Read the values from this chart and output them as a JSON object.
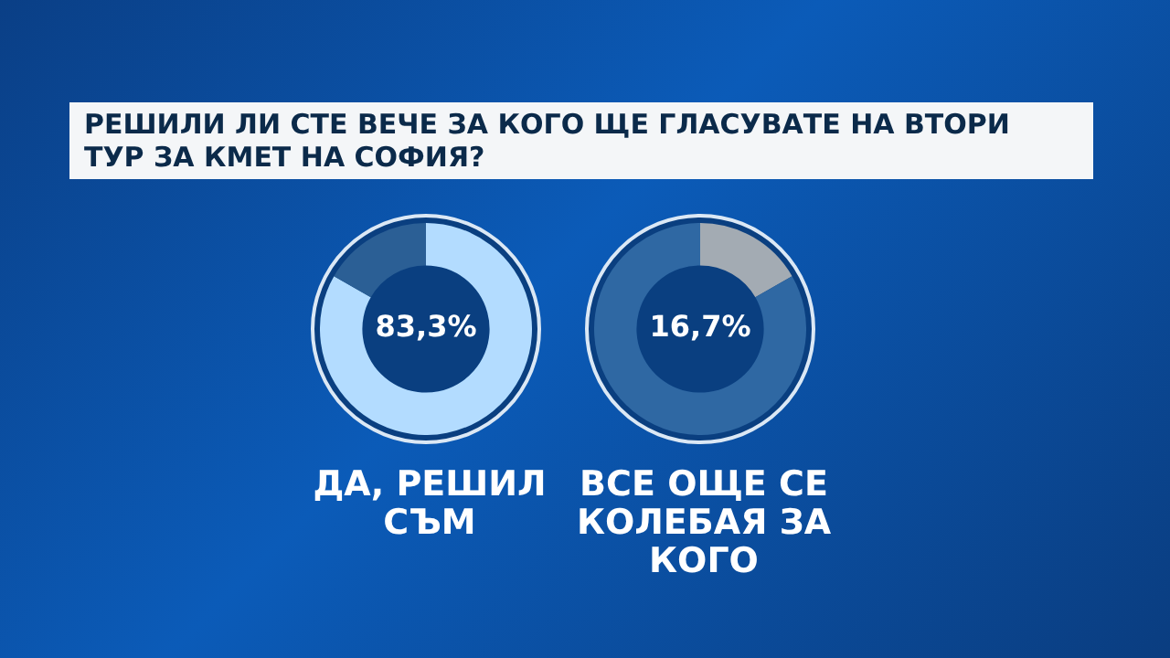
{
  "chart_data": [
    {
      "type": "donut",
      "title": "РЕШИЛИ ЛИ СТЕ ВЕЧЕ ЗА КОГО ЩЕ ГЛАСУВАТЕ НА ВТОРИ ТУР ЗА КМЕТ НА СОФИЯ?",
      "xlabel": "ДА, РЕШИЛ СЪМ",
      "categories": [
        null,
        null
      ],
      "values": [
        83.3,
        16.7
      ],
      "colors": [
        "#b3dcff",
        "#2b5f95"
      ],
      "value_labels": [
        "83,3%",
        null
      ]
    },
    {
      "type": "donut",
      "xlabel": "ВСЕ ОЩЕ СЕ КОЛЕБАЯ ЗА КОГО",
      "categories": [
        null,
        null
      ],
      "values": [
        16.7,
        83.3
      ],
      "colors": [
        "#a3abb3",
        "#2f68a3"
      ],
      "value_labels": [
        "16,7%",
        null
      ]
    }
  ]
}
